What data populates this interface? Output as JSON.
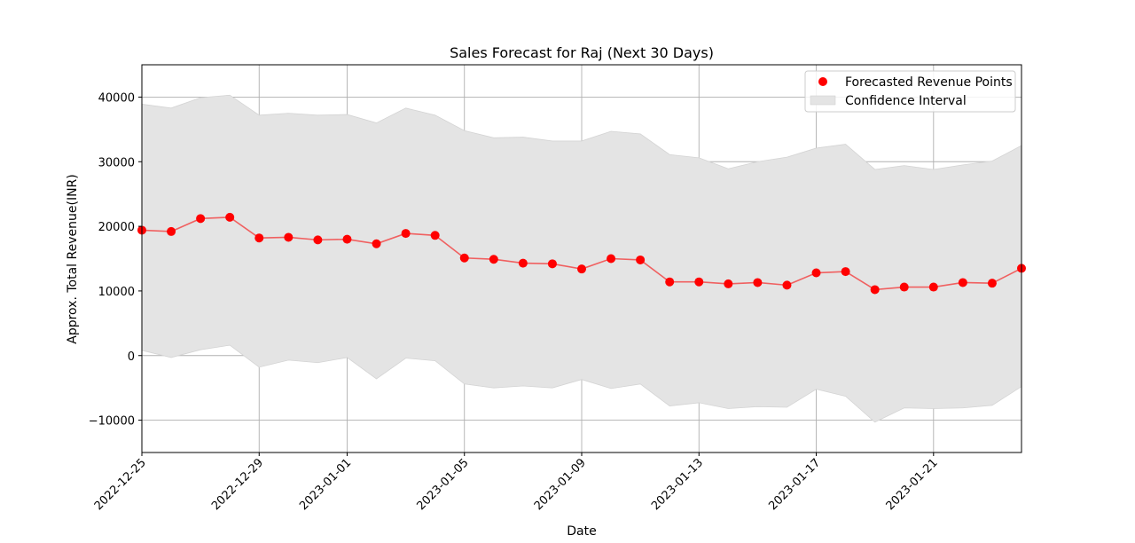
{
  "chart_data": {
    "type": "line",
    "title": "Sales Forecast for Raj (Next 30 Days)",
    "xlabel": "Date",
    "ylabel": "Approx. Total Revenue(INR)",
    "xlim": [
      "2022-12-25",
      "2023-01-24"
    ],
    "ylim": [
      -15000,
      45000
    ],
    "grid": true,
    "legend_position": "top-right",
    "x_ticks": [
      "2022-12-25",
      "2022-12-29",
      "2023-01-01",
      "2023-01-05",
      "2023-01-09",
      "2023-01-13",
      "2023-01-17",
      "2023-01-21"
    ],
    "y_ticks": [
      -10000,
      0,
      10000,
      20000,
      30000,
      40000
    ],
    "x": [
      "2022-12-25",
      "2022-12-26",
      "2022-12-27",
      "2022-12-28",
      "2022-12-29",
      "2022-12-30",
      "2022-12-31",
      "2023-01-01",
      "2023-01-02",
      "2023-01-03",
      "2023-01-04",
      "2023-01-05",
      "2023-01-06",
      "2023-01-07",
      "2023-01-08",
      "2023-01-09",
      "2023-01-10",
      "2023-01-11",
      "2023-01-12",
      "2023-01-13",
      "2023-01-14",
      "2023-01-15",
      "2023-01-16",
      "2023-01-17",
      "2023-01-18",
      "2023-01-19",
      "2023-01-20",
      "2023-01-21",
      "2023-01-22",
      "2023-01-23",
      "2023-01-24"
    ],
    "series": [
      {
        "name": "Forecasted Revenue Points",
        "color": "#ff0000",
        "line_color": "#f06060",
        "values": [
          19400,
          19200,
          21200,
          21400,
          18200,
          18300,
          17900,
          18000,
          17300,
          18900,
          18600,
          15100,
          14900,
          14300,
          14200,
          13400,
          15000,
          14800,
          11400,
          11400,
          11100,
          11300,
          10900,
          12800,
          13000,
          10200,
          10600,
          10600,
          11300,
          11200,
          13500
        ]
      },
      {
        "name": "Confidence Interval",
        "color": "#e4e4e4",
        "upper": [
          38900,
          38300,
          39900,
          40300,
          37200,
          37500,
          37200,
          37300,
          36000,
          38300,
          37200,
          34800,
          33700,
          33800,
          33200,
          33200,
          34700,
          34300,
          31100,
          30600,
          28900,
          30000,
          30700,
          32100,
          32700,
          28800,
          29400,
          28800,
          29500,
          30100,
          32500
        ],
        "lower": [
          800,
          -300,
          900,
          1600,
          -1800,
          -700,
          -1100,
          -300,
          -3600,
          -400,
          -800,
          -4400,
          -5000,
          -4700,
          -5000,
          -3700,
          -5100,
          -4400,
          -7800,
          -7300,
          -8200,
          -7900,
          -8000,
          -5200,
          -6300,
          -10300,
          -8100,
          -8200,
          -8100,
          -7700,
          -4800
        ]
      }
    ]
  }
}
